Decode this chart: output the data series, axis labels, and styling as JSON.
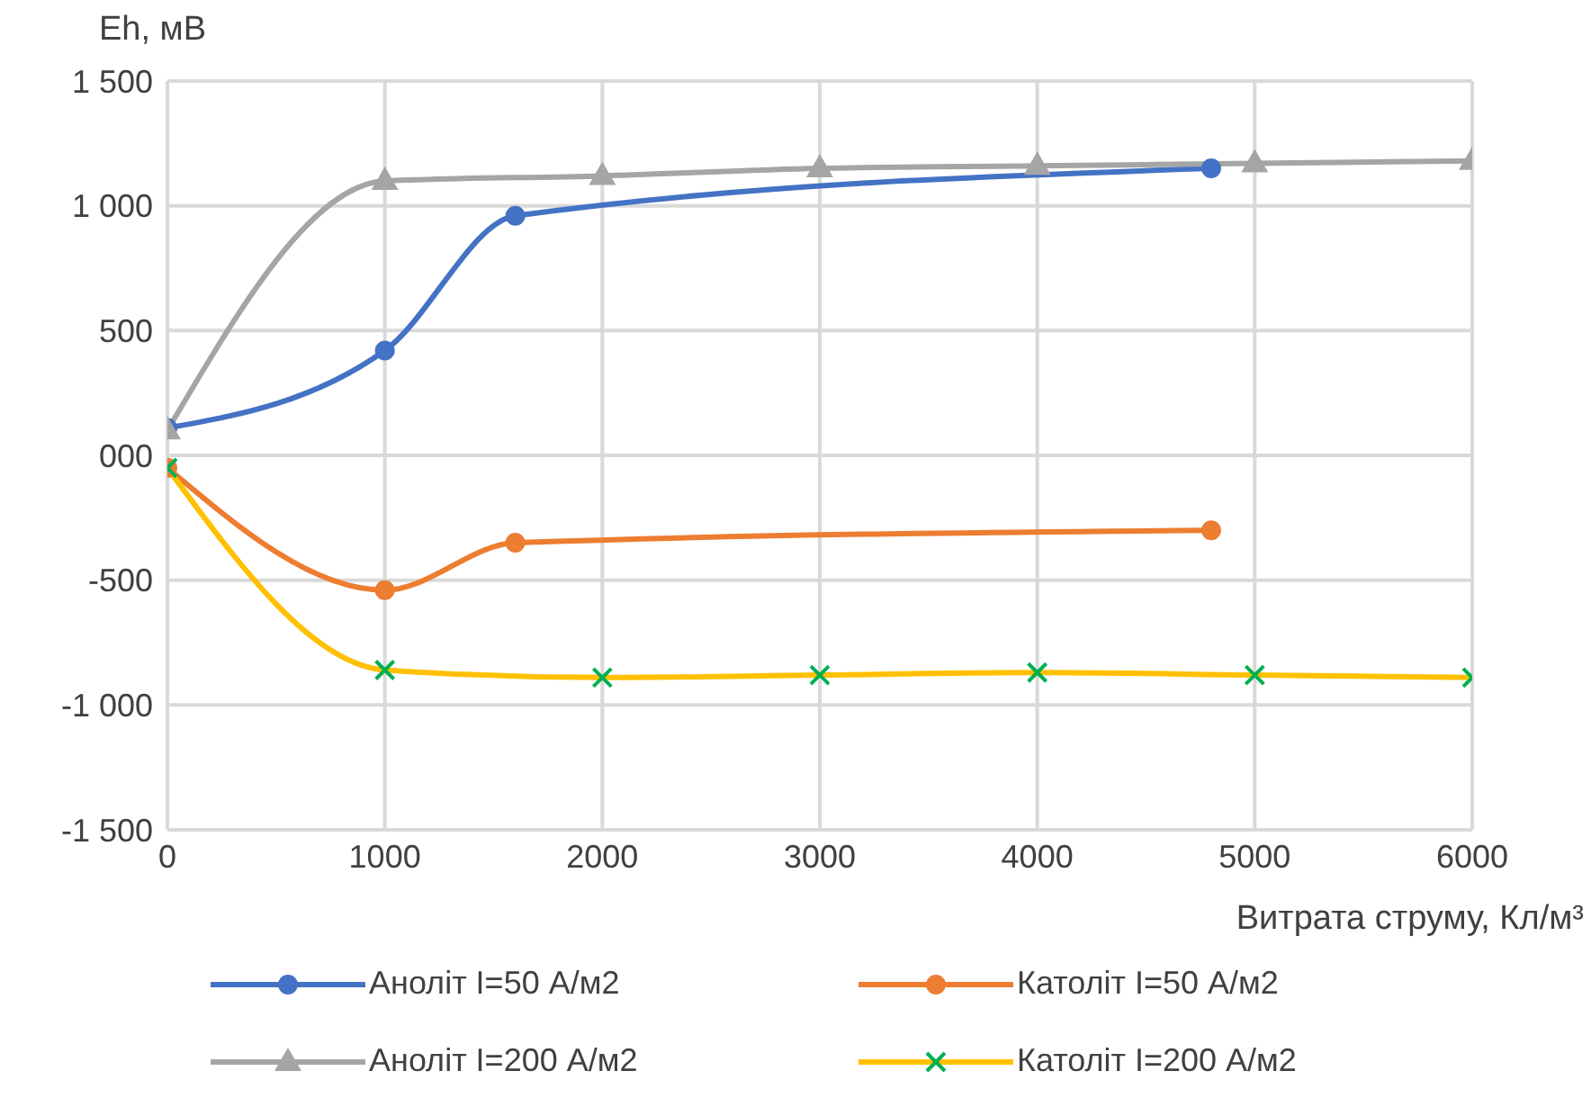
{
  "chart_data": {
    "type": "line",
    "ylabel": "Eh, мВ",
    "xlabel": "Витрата струму, Кл/м³",
    "xlim": [
      0,
      6000
    ],
    "xticks": [
      0,
      1000,
      2000,
      3000,
      4000,
      5000,
      6000
    ],
    "ylim": [
      -1500,
      1500
    ],
    "yticks": [
      {
        "value": -1500,
        "label": "-1 500"
      },
      {
        "value": -1000,
        "label": "-1 000"
      },
      {
        "value": -500,
        "label": "-500"
      },
      {
        "value": 0,
        "label": "000"
      },
      {
        "value": 500,
        "label": "500"
      },
      {
        "value": 1000,
        "label": "1 000"
      },
      {
        "value": 1500,
        "label": "1 500"
      }
    ],
    "grid": true,
    "legend": "bottom",
    "series": [
      {
        "name": "Аноліт I=50 А/м2",
        "color": "#4472c4",
        "marker": "circle",
        "x": [
          0,
          1000,
          1600,
          4800
        ],
        "values": [
          110,
          420,
          960,
          1150
        ]
      },
      {
        "name": "Католіт I=50 А/м2",
        "color": "#ed7d31",
        "marker": "circle",
        "x": [
          0,
          1000,
          1600,
          4800
        ],
        "values": [
          -50,
          -540,
          -350,
          -300
        ]
      },
      {
        "name": "Аноліт I=200 А/м2",
        "color": "#a5a5a5",
        "marker": "triangle",
        "x": [
          0,
          1000,
          2000,
          3000,
          4000,
          5000,
          6000
        ],
        "values": [
          100,
          1100,
          1120,
          1150,
          1160,
          1170,
          1180
        ]
      },
      {
        "name": "Католіт I=200 А/м2",
        "color": "#ffc000",
        "marker": "cross",
        "x": [
          0,
          1000,
          2000,
          3000,
          4000,
          5000,
          6000
        ],
        "values": [
          -50,
          -860,
          -890,
          -880,
          -870,
          -880,
          -890
        ]
      }
    ]
  }
}
